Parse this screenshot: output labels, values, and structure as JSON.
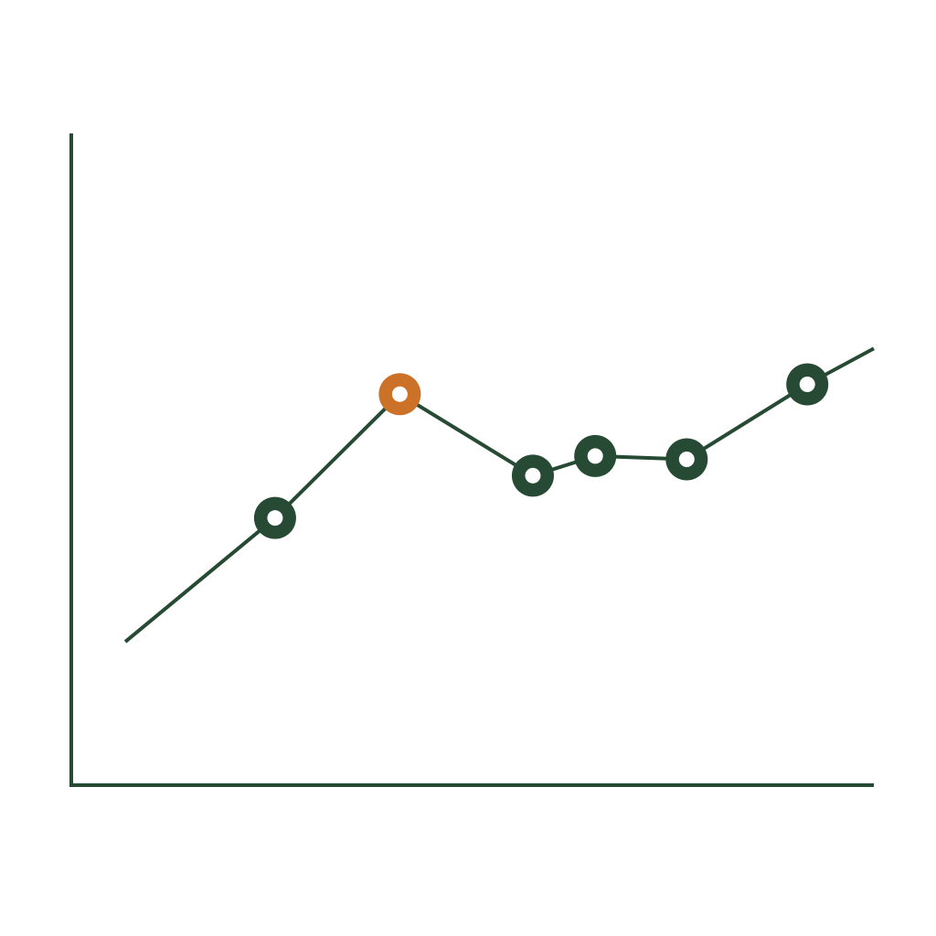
{
  "chart_data": {
    "type": "line",
    "title": "",
    "xlabel": "",
    "ylabel": "",
    "x": [
      0,
      1.8,
      3.3,
      4.9,
      5.65,
      6.75,
      8.2,
      9.0
    ],
    "series": [
      {
        "values": [
          22,
          41,
          60,
          47.5,
          50.5,
          50.0,
          61.5,
          67
        ],
        "markers": [
          false,
          true,
          true,
          true,
          true,
          true,
          true,
          false
        ],
        "highlight_index": 2
      }
    ],
    "xlim": [
      -0.65,
      9.0
    ],
    "ylim": [
      0,
      100
    ],
    "grid": false,
    "legend": "none",
    "colors": {
      "line": "#264a33",
      "axis": "#264a33",
      "highlight": "#cc7128",
      "marker_center": "#ffffff"
    }
  }
}
